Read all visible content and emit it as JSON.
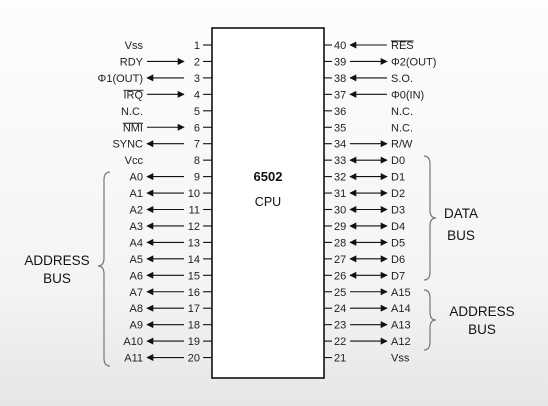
{
  "chip": {
    "model": "6502",
    "type": "CPU"
  },
  "left_pins": [
    {
      "num": "1",
      "label": "Vss",
      "dir": "none"
    },
    {
      "num": "2",
      "label": "RDY",
      "dir": "in"
    },
    {
      "num": "3",
      "label": "Φ1(OUT)",
      "dir": "out"
    },
    {
      "num": "4",
      "label": "IRQ",
      "dir": "in",
      "overline": true
    },
    {
      "num": "5",
      "label": "N.C.",
      "dir": "none"
    },
    {
      "num": "6",
      "label": "NMI",
      "dir": "in",
      "overline": true
    },
    {
      "num": "7",
      "label": "SYNC",
      "dir": "out"
    },
    {
      "num": "8",
      "label": "Vcc",
      "dir": "none"
    },
    {
      "num": "9",
      "label": "A0",
      "dir": "out"
    },
    {
      "num": "10",
      "label": "A1",
      "dir": "out"
    },
    {
      "num": "11",
      "label": "A2",
      "dir": "out"
    },
    {
      "num": "12",
      "label": "A3",
      "dir": "out"
    },
    {
      "num": "13",
      "label": "A4",
      "dir": "out"
    },
    {
      "num": "14",
      "label": "A5",
      "dir": "out"
    },
    {
      "num": "15",
      "label": "A6",
      "dir": "out"
    },
    {
      "num": "16",
      "label": "A7",
      "dir": "out"
    },
    {
      "num": "17",
      "label": "A8",
      "dir": "out"
    },
    {
      "num": "18",
      "label": "A9",
      "dir": "out"
    },
    {
      "num": "19",
      "label": "A10",
      "dir": "out"
    },
    {
      "num": "20",
      "label": "A11",
      "dir": "out"
    }
  ],
  "right_pins": [
    {
      "num": "40",
      "label": "RES",
      "dir": "in",
      "overline": true
    },
    {
      "num": "39",
      "label": "Φ2(OUT)",
      "dir": "out"
    },
    {
      "num": "38",
      "label": "S.O.",
      "dir": "in"
    },
    {
      "num": "37",
      "label": "Φ0(IN)",
      "dir": "in"
    },
    {
      "num": "36",
      "label": "N.C.",
      "dir": "none"
    },
    {
      "num": "35",
      "label": "N.C.",
      "dir": "none"
    },
    {
      "num": "34",
      "label": "R/W",
      "dir": "out"
    },
    {
      "num": "33",
      "label": "D0",
      "dir": "bi"
    },
    {
      "num": "32",
      "label": "D1",
      "dir": "bi"
    },
    {
      "num": "31",
      "label": "D2",
      "dir": "bi"
    },
    {
      "num": "30",
      "label": "D3",
      "dir": "bi"
    },
    {
      "num": "29",
      "label": "D4",
      "dir": "bi"
    },
    {
      "num": "28",
      "label": "D5",
      "dir": "bi"
    },
    {
      "num": "27",
      "label": "D6",
      "dir": "bi"
    },
    {
      "num": "26",
      "label": "D7",
      "dir": "bi"
    },
    {
      "num": "25",
      "label": "A15",
      "dir": "out"
    },
    {
      "num": "24",
      "label": "A14",
      "dir": "out"
    },
    {
      "num": "23",
      "label": "A13",
      "dir": "out"
    },
    {
      "num": "22",
      "label": "A12",
      "dir": "out"
    },
    {
      "num": "21",
      "label": "Vss",
      "dir": "none"
    }
  ],
  "groups": {
    "left_address": {
      "line1": "ADDRESS",
      "line2": "BUS"
    },
    "data_bus": {
      "line1": "DATA",
      "line2": "BUS"
    },
    "right_address": {
      "line1": "ADDRESS",
      "line2": "BUS"
    }
  }
}
